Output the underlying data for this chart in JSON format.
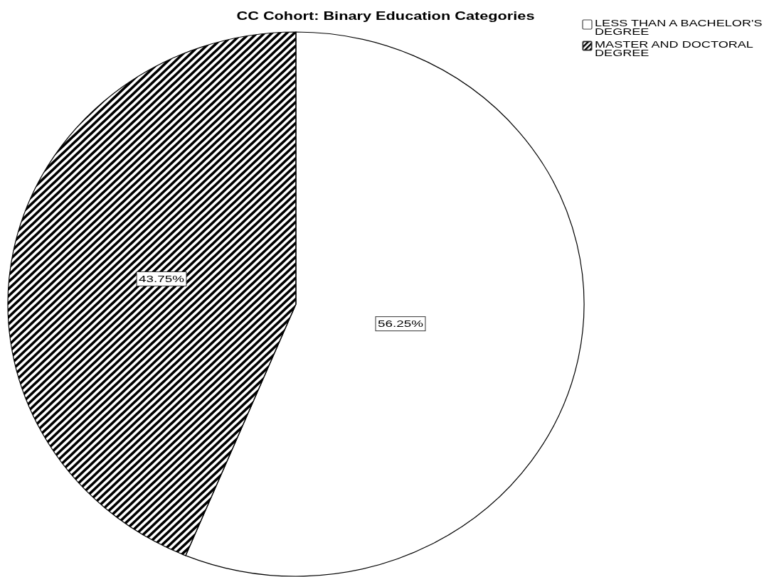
{
  "chart_data": {
    "type": "pie",
    "title": "CC Cohort: Binary Education Categories",
    "categories": [
      "LESS THAN A BACHELOR'S DEGREE",
      "MASTER AND DOCTORAL DEGREE"
    ],
    "values": [
      56.25,
      43.75
    ],
    "colors": [
      "#ffffff",
      "#000000"
    ],
    "value_labels": [
      "56.25%",
      "43.75%"
    ],
    "legend": "top right"
  }
}
